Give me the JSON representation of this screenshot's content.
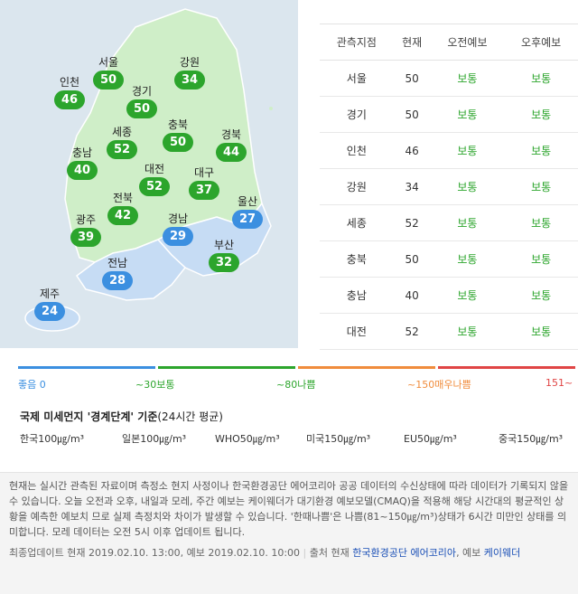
{
  "colors": {
    "normal": "#2ca52c",
    "good": "#3b8fe0",
    "bad": "#f08c3c",
    "very_bad": "#e04545"
  },
  "map": {
    "regions": [
      {
        "name": "서울",
        "value": "50",
        "status": "normal"
      },
      {
        "name": "강원",
        "value": "34",
        "status": "normal"
      },
      {
        "name": "인천",
        "value": "46",
        "status": "normal"
      },
      {
        "name": "경기",
        "value": "50",
        "status": "normal"
      },
      {
        "name": "세종",
        "value": "52",
        "status": "normal"
      },
      {
        "name": "충북",
        "value": "50",
        "status": "normal"
      },
      {
        "name": "경북",
        "value": "44",
        "status": "normal"
      },
      {
        "name": "충남",
        "value": "40",
        "status": "normal"
      },
      {
        "name": "대전",
        "value": "52",
        "status": "normal"
      },
      {
        "name": "대구",
        "value": "37",
        "status": "normal"
      },
      {
        "name": "울산",
        "value": "27",
        "status": "good"
      },
      {
        "name": "전북",
        "value": "42",
        "status": "normal"
      },
      {
        "name": "광주",
        "value": "39",
        "status": "normal"
      },
      {
        "name": "경남",
        "value": "29",
        "status": "good"
      },
      {
        "name": "부산",
        "value": "32",
        "status": "normal"
      },
      {
        "name": "전남",
        "value": "28",
        "status": "good"
      },
      {
        "name": "제주",
        "value": "24",
        "status": "good"
      }
    ]
  },
  "table": {
    "headers": [
      "관측지점",
      "현재",
      "오전예보",
      "오후예보"
    ],
    "rows": [
      [
        "서울",
        "50",
        "보통",
        "보통"
      ],
      [
        "경기",
        "50",
        "보통",
        "보통"
      ],
      [
        "인천",
        "46",
        "보통",
        "보통"
      ],
      [
        "강원",
        "34",
        "보통",
        "보통"
      ],
      [
        "세종",
        "52",
        "보통",
        "보통"
      ],
      [
        "충북",
        "50",
        "보통",
        "보통"
      ],
      [
        "충남",
        "40",
        "보통",
        "보통"
      ],
      [
        "대전",
        "52",
        "보통",
        "보통"
      ]
    ]
  },
  "scale": {
    "labels": [
      "좋음 0",
      "~30보통",
      "~80나쁨",
      "~150매우나쁨",
      "151~"
    ]
  },
  "standards": {
    "title": "국제 미세먼지 '경계단계' 기준",
    "subtitle": "(24시간 평균)",
    "items": [
      "한국100㎍/m³",
      "일본100㎍/m³",
      "WHO50㎍/m³",
      "미국150㎍/m³",
      "EU50㎍/m³",
      "중국150㎍/m³"
    ]
  },
  "notice": {
    "text": "현재는 실시간 관측된 자료이며 측정소 현지 사정이나 한국환경공단 에어코리아 공공 데이터의 수신상태에 따라 데이터가 기록되지 않을 수 있습니다. 오늘 오전과 오후, 내일과 모레, 주간 예보는 케이웨더가 대기환경 예보모델(CMAQ)을 적용해 해당 시간대의 평균적인 상황을 예측한 예보치 므로 실제 측정치와 차이가 발생할 수 있습니다. '한때나쁨'은 나쁨(81~150㎍/m³)상태가 6시간 미만인 상태를 의미합니다. 모레 데이터는 오전 5시 이후 업데이트 됩니다.",
    "update": "최종업데이트 현재 2019.02.10. 13:00, 예보 2019.02.10. 10:00",
    "source_prefix": "출처 현재",
    "source_link1": "한국환경공단 에어코리아",
    "source_mid": ", 예보",
    "source_link2": "케이웨더"
  }
}
